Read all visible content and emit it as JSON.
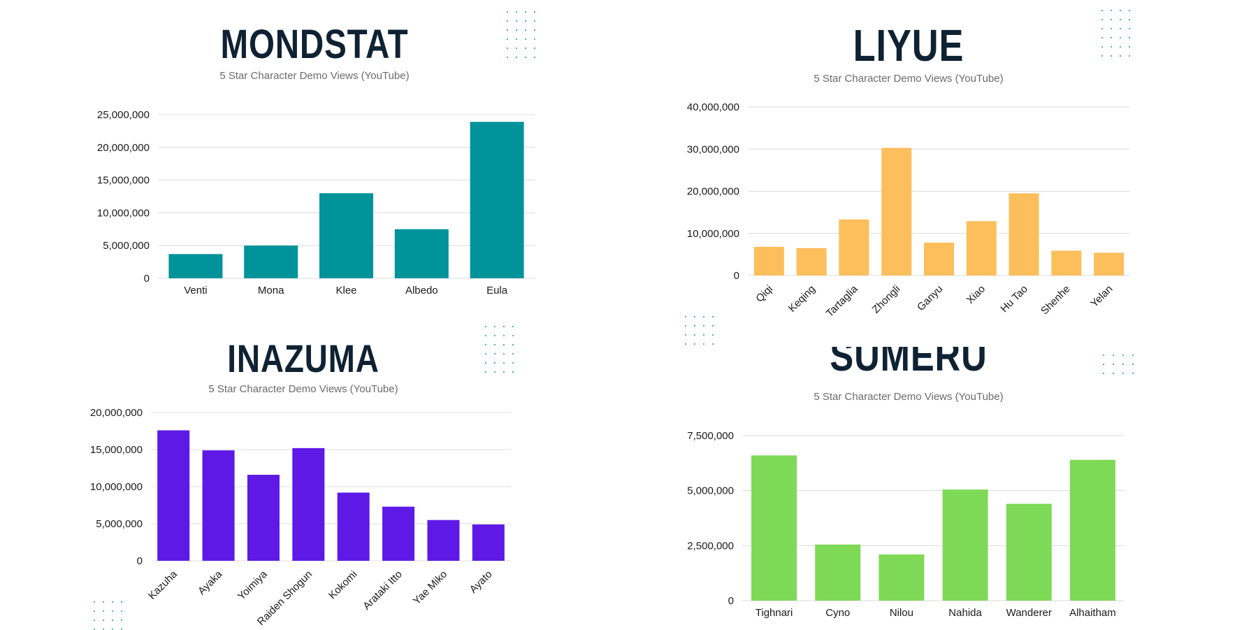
{
  "charts": [
    {
      "title": "MONDSTAT",
      "subtitle": "5 Star Character Demo Views (YouTube)",
      "color": "#00939a",
      "y_ticks": [
        "0",
        "5,000,000",
        "10,000,000",
        "15,000,000",
        "20,000,000",
        "25,000,000"
      ]
    },
    {
      "title": "LIYUE",
      "subtitle": "5 Star Character Demo Views (YouTube)",
      "color": "#fdbe5c",
      "y_ticks": [
        "0",
        "10,000,000",
        "20,000,000",
        "30,000,000",
        "40,000,000"
      ]
    },
    {
      "title": "INAZUMA",
      "subtitle": "5 Star Character Demo Views (YouTube)",
      "color": "#5e19e6",
      "y_ticks": [
        "0",
        "5,000,000",
        "10,000,000",
        "15,000,000",
        "20,000,000"
      ]
    },
    {
      "title": "SUMERU",
      "subtitle": "5 Star Character Demo Views (YouTube)",
      "color": "#7ed957",
      "y_ticks": [
        "0",
        "2,500,000",
        "5,000,000",
        "7,500,000"
      ]
    }
  ],
  "chart_data": [
    {
      "type": "bar",
      "title": "MONDSTAT",
      "subtitle": "5 Star Character Demo Views (YouTube)",
      "categories": [
        "Venti",
        "Mona",
        "Klee",
        "Albedo",
        "Eula"
      ],
      "values": [
        3700000,
        5000000,
        13000000,
        7500000,
        23900000
      ],
      "ylim": [
        0,
        25000000
      ],
      "grid": true,
      "legend": "none"
    },
    {
      "type": "bar",
      "title": "LIYUE",
      "subtitle": "5 Star Character Demo Views (YouTube)",
      "categories": [
        "Qiqi",
        "Keqing",
        "Tartaglia",
        "Zhongli",
        "Ganyu",
        "Xiao",
        "Hu Tao",
        "Shenhe",
        "Yelan"
      ],
      "values": [
        6800000,
        6500000,
        13300000,
        30300000,
        7800000,
        12900000,
        19500000,
        5900000,
        5400000
      ],
      "ylim": [
        0,
        40000000
      ],
      "grid": true,
      "legend": "none"
    },
    {
      "type": "bar",
      "title": "INAZUMA",
      "subtitle": "5 Star Character Demo Views (YouTube)",
      "categories": [
        "Kazuha",
        "Ayaka",
        "Yoimiya",
        "Raiden Shogun",
        "Kokomi",
        "Arataki Itto",
        "Yae Miko",
        "Ayato"
      ],
      "values": [
        17600000,
        14900000,
        11600000,
        15200000,
        9200000,
        7300000,
        5500000,
        4900000
      ],
      "ylim": [
        0,
        20000000
      ],
      "grid": true,
      "legend": "none"
    },
    {
      "type": "bar",
      "title": "SUMERU",
      "subtitle": "5 Star Character Demo Views (YouTube)",
      "categories": [
        "Tighnari",
        "Cyno",
        "Nilou",
        "Nahida",
        "Wanderer",
        "Alhaitham"
      ],
      "values": [
        6600000,
        2550000,
        2100000,
        5050000,
        4400000,
        6400000
      ],
      "ylim": [
        0,
        7500000
      ],
      "grid": true,
      "legend": "none"
    }
  ]
}
